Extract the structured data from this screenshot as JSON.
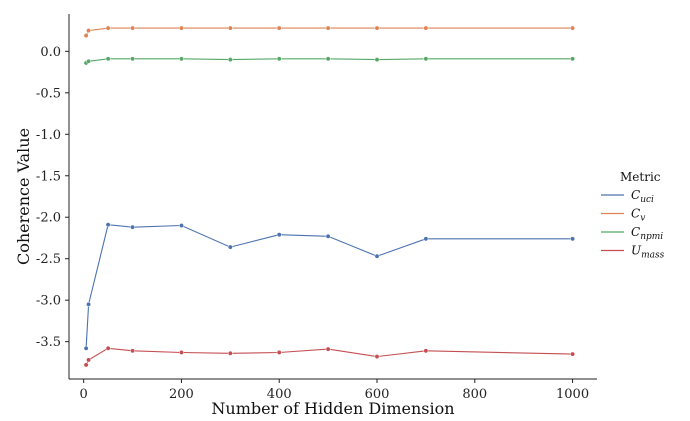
{
  "chart_data": {
    "type": "line",
    "title": "",
    "xlabel": "Number of Hidden Dimension",
    "ylabel": "Coherence Value",
    "xlim": [
      -30,
      1050
    ],
    "ylim": [
      -3.95,
      0.45
    ],
    "xticks": [
      0,
      200,
      400,
      600,
      800,
      1000
    ],
    "yticks": [
      0.0,
      -0.5,
      -1.0,
      -1.5,
      -2.0,
      -2.5,
      -3.0,
      -3.5
    ],
    "x": [
      5,
      10,
      50,
      100,
      200,
      300,
      400,
      500,
      600,
      700,
      1000
    ],
    "grid": false,
    "legend": {
      "title": "Metric",
      "placement": "right",
      "entries": [
        {
          "base": "C",
          "sub": "uci"
        },
        {
          "base": "C",
          "sub": "v"
        },
        {
          "base": "C",
          "sub": "npmi"
        },
        {
          "base": "U",
          "sub": "mass"
        }
      ]
    },
    "series": [
      {
        "name": "C_uci",
        "color": "#4c72b0",
        "values": [
          -3.58,
          -3.05,
          -2.09,
          -2.12,
          -2.1,
          -2.36,
          -2.21,
          -2.23,
          -2.47,
          -2.26,
          -2.26
        ]
      },
      {
        "name": "C_v",
        "color": "#dd8452",
        "values": [
          0.19,
          0.25,
          0.28,
          0.28,
          0.28,
          0.28,
          0.28,
          0.28,
          0.28,
          0.28,
          0.28
        ]
      },
      {
        "name": "C_npmi",
        "color": "#55a868",
        "values": [
          -0.14,
          -0.12,
          -0.09,
          -0.09,
          -0.09,
          -0.1,
          -0.09,
          -0.09,
          -0.1,
          -0.09,
          -0.09
        ]
      },
      {
        "name": "U_mass",
        "color": "#c44e52",
        "values": [
          -3.78,
          -3.72,
          -3.58,
          -3.61,
          -3.63,
          -3.64,
          -3.63,
          -3.59,
          -3.68,
          -3.61,
          -3.65
        ]
      }
    ]
  }
}
